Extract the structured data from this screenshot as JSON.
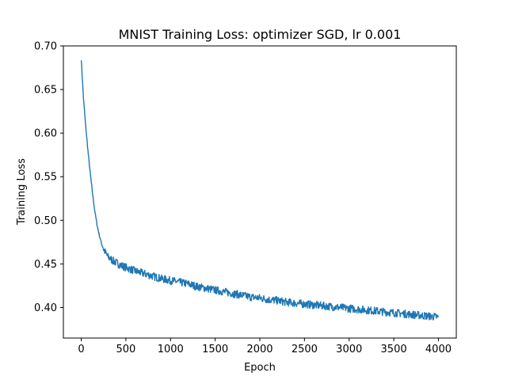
{
  "chart_data": {
    "type": "line",
    "title": "MNIST Training Loss: optimizer SGD, lr 0.001",
    "xlabel": "Epoch",
    "ylabel": "Training Loss",
    "xlim": [
      -200,
      4200
    ],
    "ylim": [
      0.365,
      0.7
    ],
    "x_ticks": [
      0,
      500,
      1000,
      1500,
      2000,
      2500,
      3000,
      3500,
      4000
    ],
    "x_tick_labels": [
      "0",
      "500",
      "1000",
      "1500",
      "2000",
      "2500",
      "3000",
      "3500",
      "4000"
    ],
    "y_ticks": [
      0.4,
      0.45,
      0.5,
      0.55,
      0.6,
      0.65,
      0.7
    ],
    "y_tick_labels": [
      "0.40",
      "0.45",
      "0.50",
      "0.55",
      "0.60",
      "0.65",
      "0.70"
    ],
    "grid": false,
    "line_color": "#1f77b4",
    "series": [
      {
        "x": [
          0,
          25,
          50,
          75,
          100,
          125,
          150,
          175,
          200,
          225,
          250,
          275,
          300,
          350,
          400,
          450,
          500,
          600,
          700,
          800,
          900,
          1000,
          1100,
          1200,
          1300,
          1400,
          1500,
          1600,
          1700,
          1800,
          1900,
          2000,
          2100,
          2200,
          2300,
          2400,
          2500,
          2600,
          2700,
          2800,
          2900,
          3000,
          3100,
          3200,
          3300,
          3400,
          3500,
          3600,
          3700,
          3800,
          3900,
          4000
        ],
        "values": [
          0.685,
          0.64,
          0.608,
          0.58,
          0.555,
          0.532,
          0.512,
          0.496,
          0.484,
          0.474,
          0.467,
          0.462,
          0.458,
          0.454,
          0.451,
          0.448,
          0.446,
          0.442,
          0.439,
          0.436,
          0.433,
          0.431,
          0.429,
          0.427,
          0.424,
          0.422,
          0.42,
          0.418,
          0.416,
          0.414,
          0.412,
          0.411,
          0.409,
          0.408,
          0.406,
          0.405,
          0.404,
          0.403,
          0.402,
          0.401,
          0.4,
          0.399,
          0.398,
          0.397,
          0.396,
          0.395,
          0.394,
          0.393,
          0.392,
          0.391,
          0.39,
          0.389
        ]
      }
    ]
  }
}
